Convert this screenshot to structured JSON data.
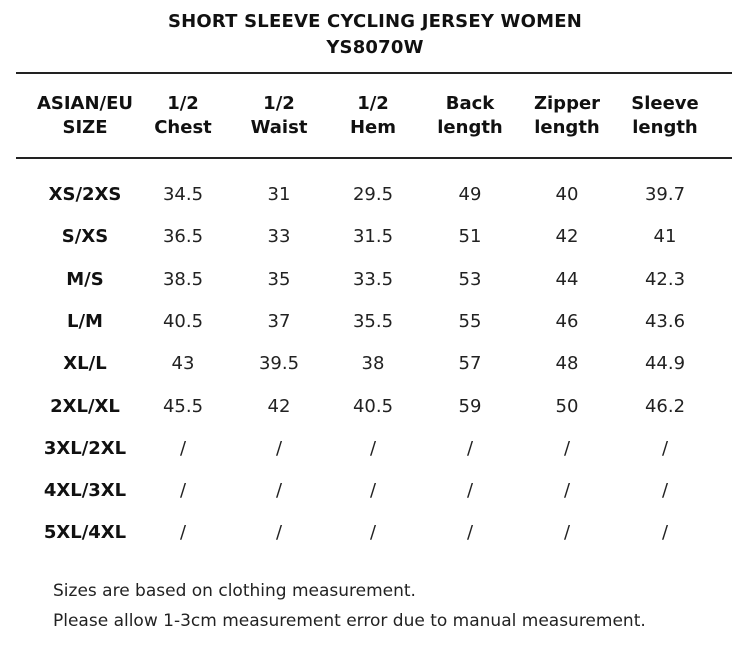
{
  "title_line1": "SHORT SLEEVE CYCLING JERSEY WOMEN",
  "title_line2": "YS8070W",
  "headers": [
    [
      "ASIAN/EU",
      "SIZE"
    ],
    [
      "1/2",
      "Chest"
    ],
    [
      "1/2",
      "Waist"
    ],
    [
      "1/2",
      "Hem"
    ],
    [
      "Back",
      "length"
    ],
    [
      "Zipper",
      "length"
    ],
    [
      "Sleeve",
      "length"
    ]
  ],
  "rows": [
    [
      "XS/2XS",
      "34.5",
      "31",
      "29.5",
      "49",
      "40",
      "39.7"
    ],
    [
      "S/XS",
      "36.5",
      "33",
      "31.5",
      "51",
      "42",
      "41"
    ],
    [
      "M/S",
      "38.5",
      "35",
      "33.5",
      "53",
      "44",
      "42.3"
    ],
    [
      "L/M",
      "40.5",
      "37",
      "35.5",
      "55",
      "46",
      "43.6"
    ],
    [
      "XL/L",
      "43",
      "39.5",
      "38",
      "57",
      "48",
      "44.9"
    ],
    [
      "2XL/XL",
      "45.5",
      "42",
      "40.5",
      "59",
      "50",
      "46.2"
    ],
    [
      "3XL/2XL",
      "/",
      "/",
      "/",
      "/",
      "/",
      "/"
    ],
    [
      "4XL/3XL",
      "/",
      "/",
      "/",
      "/",
      "/",
      "/"
    ],
    [
      "5XL/4XL",
      "/",
      "/",
      "/",
      "/",
      "/",
      "/"
    ]
  ],
  "notes": [
    "Sizes are based on clothing measurement.",
    "Please allow 1-3cm measurement error due to manual measurement."
  ]
}
